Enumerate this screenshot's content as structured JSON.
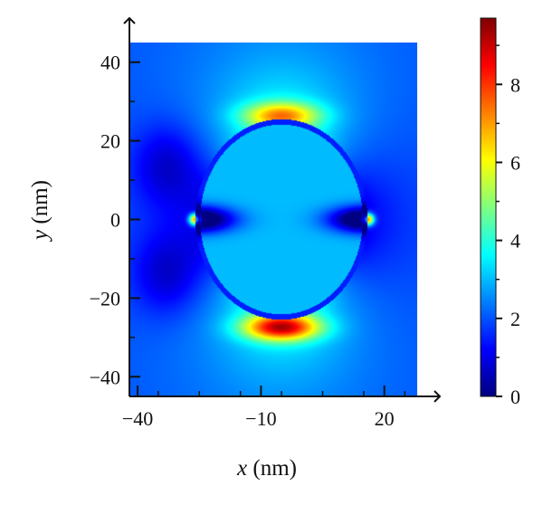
{
  "chart_data": {
    "type": "heatmap",
    "x_axis": {
      "label_var": "x",
      "label_unit": "(nm)",
      "ticks": [
        -40,
        -10,
        20
      ],
      "tick_labels": [
        "−40",
        "−10",
        "20"
      ],
      "range": [
        -42,
        28
      ]
    },
    "y_axis": {
      "label_var": "y",
      "label_unit": "(nm)",
      "ticks": [
        -40,
        -20,
        0,
        20,
        40
      ],
      "tick_labels": [
        "−40",
        "−20",
        "0",
        "20",
        "40"
      ],
      "range": [
        -45,
        45
      ]
    },
    "colorbar": {
      "ticks": [
        0,
        2,
        4,
        6,
        8
      ],
      "tick_labels": [
        "0",
        "2",
        "4",
        "6",
        "8"
      ],
      "range": [
        0,
        9.7
      ],
      "colormap": "jet",
      "colors": [
        "#00007f",
        "#0000ff",
        "#007fff",
        "#00ffff",
        "#7fff7f",
        "#ffff00",
        "#ff7f00",
        "#ff0000",
        "#7f0000"
      ]
    },
    "field_features": {
      "particle": {
        "shape": "ellipse",
        "center_x_nm": -5,
        "center_y_nm": 0,
        "semi_axis_x_nm": 20.5,
        "semi_axis_y_nm": 25,
        "inside_value": 3.0,
        "boundary_value": 1.5
      },
      "background_value": 2.0,
      "hotspots": [
        {
          "x_nm": -5,
          "y_nm": 26.5,
          "peak_value": 7.0
        },
        {
          "x_nm": -5,
          "y_nm": -27.5,
          "peak_value": 9.0
        },
        {
          "x_nm": -26,
          "y_nm": 0,
          "peak_value": 8.0
        },
        {
          "x_nm": 16,
          "y_nm": 0,
          "peak_value": 8.0
        }
      ],
      "minima": [
        {
          "x_nm": -33,
          "y_nm": 14,
          "value": 0.8
        },
        {
          "x_nm": -33,
          "y_nm": -14,
          "value": 0.8
        }
      ]
    }
  }
}
